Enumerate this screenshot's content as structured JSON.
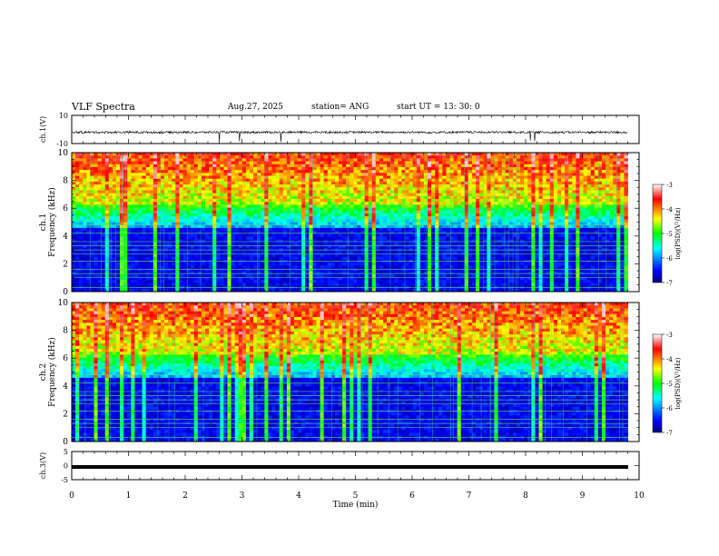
{
  "header": {
    "title": "VLF Spectra",
    "date": "Aug.27, 2025",
    "station": "station= ANG",
    "start": "start  UT =   13: 30: 0"
  },
  "chart_data": [
    {
      "type": "line",
      "title": "",
      "ylabel": "ch.1(V)",
      "xlim": [
        0,
        10
      ],
      "ylim": [
        -10,
        10
      ],
      "yticks": [
        "10",
        "-10"
      ],
      "baseline": -2,
      "note_x_range": [
        0,
        9.8
      ]
    },
    {
      "type": "heatmap",
      "ylabel": "ch.1  Frequency  (kHz)",
      "ylabel_lines": [
        "ch.1",
        "Frequency  (kHz)"
      ],
      "xlim": [
        0,
        10
      ],
      "ylim": [
        0,
        10
      ],
      "yticks": [
        "0",
        "2",
        "4",
        "6",
        "8",
        "10"
      ],
      "colorbar": {
        "label": "log(PSD)(V²/Hz)",
        "range": [
          -7,
          -3
        ],
        "ticks": [
          "-3",
          "-4",
          "-5",
          "-6",
          "-7"
        ]
      },
      "data_end_x": 9.8
    },
    {
      "type": "heatmap",
      "ylabel": "ch.2  Frequency  (kHz)",
      "ylabel_lines": [
        "ch.2",
        "Frequency  (kHz)"
      ],
      "xlim": [
        0,
        10
      ],
      "ylim": [
        0,
        10
      ],
      "yticks": [
        "0",
        "2",
        "4",
        "6",
        "8",
        "10"
      ],
      "colorbar": {
        "label": "log(PSD)(V²/Hz)",
        "range": [
          -7,
          -3
        ],
        "ticks": [
          "-3",
          "-4",
          "-5",
          "-6",
          "-7"
        ]
      },
      "data_end_x": 9.8
    },
    {
      "type": "line",
      "ylabel": "ch.3(V)",
      "xlim": [
        0,
        10
      ],
      "ylim": [
        -5,
        5
      ],
      "yticks": [
        "5",
        "0",
        "-5"
      ],
      "baseline": -0.5,
      "xlabel": "Time  (min)",
      "xticks": [
        "0",
        "1",
        "2",
        "3",
        "4",
        "5",
        "6",
        "7",
        "8",
        "9",
        "10"
      ]
    }
  ]
}
